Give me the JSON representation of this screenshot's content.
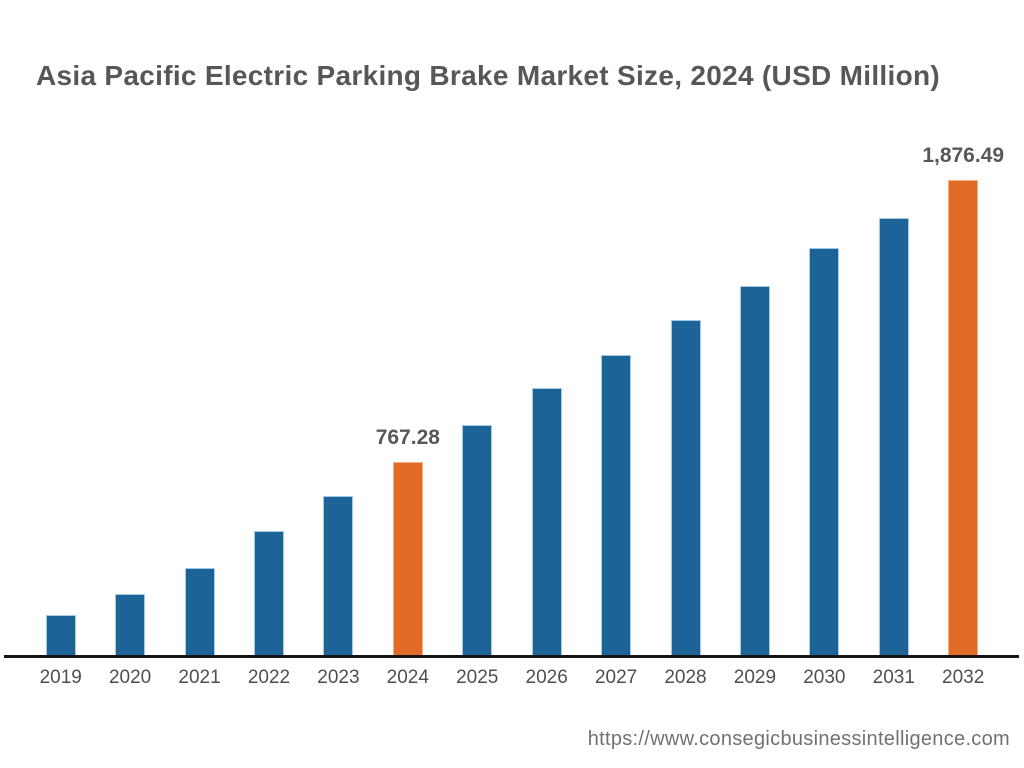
{
  "title": "Asia Pacific Electric Parking Brake Market Size, 2024 (USD Million)",
  "footer": {
    "url": "https://www.consegicbusinessintelligence.com"
  },
  "colors": {
    "bar_blue": "#1c6398",
    "bar_blue_edge": "#a6c9e4",
    "bar_orange": "#e26b28",
    "bar_orange_edge": "#f2b183",
    "axis": "#161616",
    "title_text": "#565759",
    "label_text": "#57585b",
    "tick_text": "#4e4f51"
  },
  "chart_data": {
    "type": "bar",
    "title": "Asia Pacific Electric Parking Brake Market Size, 2024 (USD Million)",
    "xlabel": "",
    "ylabel": "USD Million",
    "categories": [
      "2019",
      "2020",
      "2021",
      "2022",
      "2023",
      "2024",
      "2025",
      "2026",
      "2027",
      "2028",
      "2029",
      "2030",
      "2031",
      "2032"
    ],
    "values": [
      165,
      248,
      350,
      496,
      633,
      767.28,
      913,
      1058,
      1188,
      1326,
      1460,
      1609,
      1727,
      1876.49
    ],
    "value_labels": {
      "2024": "767.28",
      "2032": "1,876.49"
    },
    "highlighted_categories": [
      "2024",
      "2032"
    ],
    "ylim": [
      0,
      2000
    ],
    "grid": false,
    "legend": false,
    "axis_line": "bottom-only"
  }
}
